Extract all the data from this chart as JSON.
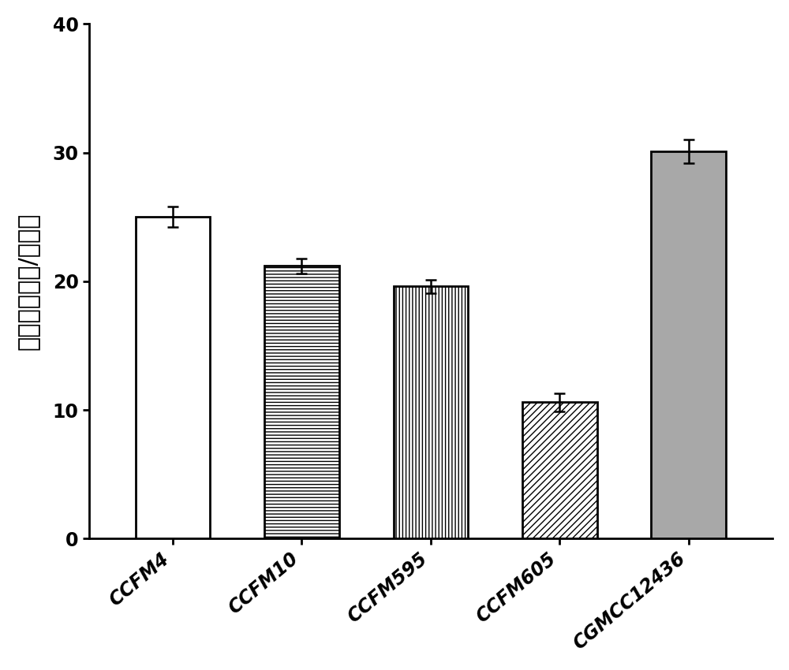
{
  "categories": [
    "CCFM4",
    "CCFM10",
    "CCFM595",
    "CCFM605",
    "CGMCC12436"
  ],
  "values": [
    25.0,
    21.2,
    19.6,
    10.6,
    30.1
  ],
  "errors": [
    0.8,
    0.6,
    0.5,
    0.7,
    0.9
  ],
  "ylabel": "粘附菌数（个/细胞）",
  "ylim": [
    0,
    40
  ],
  "yticks": [
    0,
    10,
    20,
    30,
    40
  ],
  "bar_colors": [
    "#ffffff",
    "#ffffff",
    "#ffffff",
    "#ffffff",
    "#a8a8a8"
  ],
  "bar_edgecolor": "#000000",
  "hatches": [
    "",
    "----",
    "||||",
    "////",
    ""
  ],
  "figsize": [
    10,
    8.5
  ],
  "dpi": 100,
  "bar_width": 0.58,
  "ylabel_fontsize": 22,
  "tick_fontsize": 17,
  "xtick_rotation": 40,
  "errorbar_capsize": 5,
  "errorbar_color": "#000000",
  "errorbar_linewidth": 1.8,
  "spine_linewidth": 2.0
}
